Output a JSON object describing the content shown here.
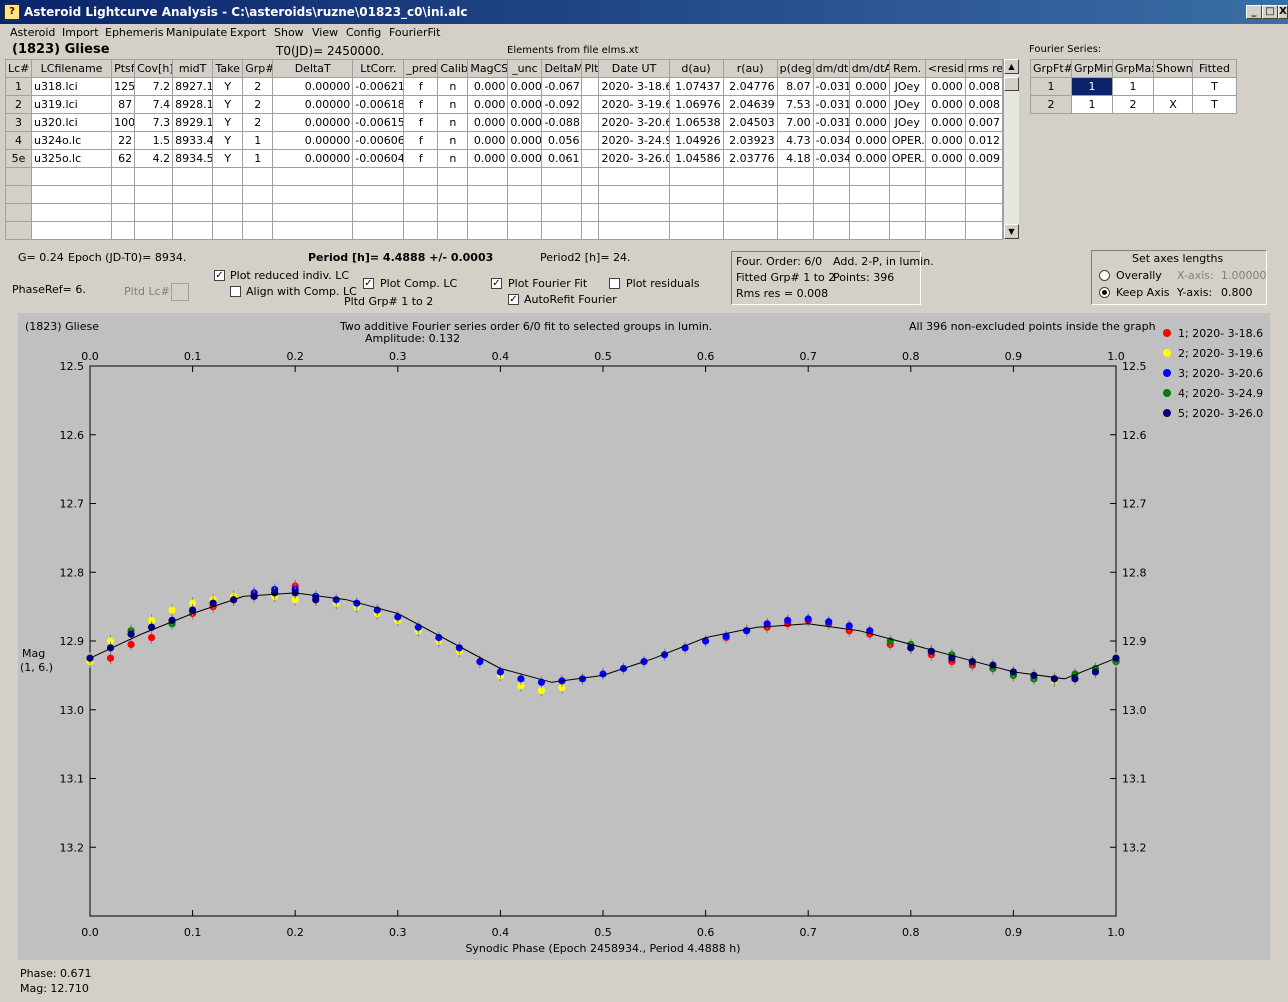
{
  "window": {
    "title": "Asteroid Lightcurve Analysis - C:\\asteroids\\ruzne\\01823_c0\\ini.alc",
    "min": "_",
    "max": "□",
    "close": "X"
  },
  "menu": [
    "Asteroid",
    "Import",
    "Ephemeris",
    "Manipulate",
    "Export",
    "Show",
    "View",
    "Config",
    "FourierFit"
  ],
  "header": {
    "asteroid": "(1823) Gliese",
    "t0": "T0(JD)= 2450000.",
    "elements": "Elements from file elms.xt",
    "fourier_label": "Fourier Series:"
  },
  "table": {
    "columns": [
      "Lc#",
      "LCfilename",
      "Ptsf",
      "Cov[h]",
      "midT",
      "Take",
      "Grp#",
      "DeltaT",
      "LtCorr.",
      "_pred.",
      "Calib.",
      "MagCS",
      "_unc",
      "DeltaM",
      "Plt",
      "Date UT",
      "d(au)",
      "r(au)",
      "p(deg)",
      "dm/dt",
      "dm/dtA",
      "Rem.",
      "<resid>",
      "rms res"
    ],
    "rows": [
      [
        "1",
        "u318.lci",
        "125",
        "7.2",
        "8927.1",
        "Y",
        "2",
        "0.00000",
        "-0.00621",
        "f",
        "n",
        "0.000",
        "0.000",
        "-0.067",
        "",
        "2020- 3-18.6",
        "1.07437",
        "2.04776",
        "8.07",
        "-0.031",
        "0.000",
        "JOey",
        "0.000",
        "0.008"
      ],
      [
        "2",
        "u319.lci",
        "87",
        "7.4",
        "8928.1",
        "Y",
        "2",
        "0.00000",
        "-0.00618",
        "f",
        "n",
        "0.000",
        "0.000",
        "-0.092",
        "",
        "2020- 3-19.6",
        "1.06976",
        "2.04639",
        "7.53",
        "-0.031",
        "0.000",
        "JOey",
        "0.000",
        "0.008"
      ],
      [
        "3",
        "u320.lci",
        "100",
        "7.3",
        "8929.1",
        "Y",
        "2",
        "0.00000",
        "-0.00615",
        "f",
        "n",
        "0.000",
        "0.000",
        "-0.088",
        "",
        "2020- 3-20.6",
        "1.06538",
        "2.04503",
        "7.00",
        "-0.031",
        "0.000",
        "JOey",
        "0.000",
        "0.007"
      ],
      [
        "4",
        "u324o.lc",
        "22",
        "1.5",
        "8933.4",
        "Y",
        "1",
        "0.00000",
        "-0.00606",
        "f",
        "n",
        "0.000",
        "0.000",
        "0.056",
        "",
        "2020- 3-24.9",
        "1.04926",
        "2.03923",
        "4.73",
        "-0.034",
        "0.000",
        "OPER.",
        "0.000",
        "0.012"
      ],
      [
        "5e",
        "u325o.lc",
        "62",
        "4.2",
        "8934.5",
        "Y",
        "1",
        "0.00000",
        "-0.00604",
        "f",
        "n",
        "0.000",
        "0.000",
        "0.061",
        "",
        "2020- 3-26.0",
        "1.04586",
        "2.03776",
        "4.18",
        "-0.034",
        "0.000",
        "OPER.",
        "0.000",
        "0.009"
      ]
    ]
  },
  "fourier": {
    "columns": [
      "GrpFt#",
      "GrpMin",
      "GrpMax",
      "Shown",
      "Fitted"
    ],
    "rows": [
      [
        "1",
        "1",
        "1",
        "",
        "T"
      ],
      [
        "2",
        "1",
        "2",
        "X",
        "T"
      ]
    ]
  },
  "controls": {
    "g": "G= 0.24",
    "epoch": "Epoch (JD-T0)= 8934.",
    "period": "Period [h]= 4.4888 +/- 0.0003",
    "period2": "Period2 [h]= 24.",
    "phaseref": "PhaseRef= 6.",
    "pltd_lc": "Pltd Lc#:",
    "plot_reduced": "Plot reduced indiv. LC",
    "align": "Align with Comp. LC",
    "plot_comp": "Plot Comp. LC",
    "pltd_grp": "Pltd Grp#  1   to   2",
    "plot_fourier": "Plot Fourier Fit",
    "autorefit": "AutoRefit Fourier",
    "plot_resid": "Plot residuals",
    "four_order": "Four. Order:  6/0",
    "add": "Add. 2-P, in lumin.",
    "fitted_grp": "Fitted Grp# 1 to 2",
    "points": "Points: 396",
    "rms": "Rms res     = 0.008",
    "axes_title": "Set axes lengths",
    "overally": "Overally",
    "keep_axis": "Keep Axis",
    "xaxis_label": "X-axis:",
    "xaxis_val": "1.00000",
    "yaxis_label": "Y-axis:",
    "yaxis_val": "0.800"
  },
  "graph": {
    "name": "(1823) Gliese",
    "subtitle": "Two additive Fourier series order 6/0 fit to selected groups in lumin.",
    "amplitude": "Amplitude: 0.132",
    "note": "All 396 non-excluded points inside the graph",
    "ylabel1": "Mag",
    "ylabel2": "(1, 6.)"
  },
  "status": {
    "phase": "Phase:  0.671",
    "mag": "Mag:   12.710"
  },
  "chart_data": {
    "type": "scatter",
    "title": "Two additive Fourier series order 6/0 fit to selected groups in lumin.",
    "xlabel": "Synodic Phase (Epoch 2458934., Period 4.4888 h)",
    "ylabel": "Mag (1, 6.)",
    "xlim": [
      0.0,
      1.0
    ],
    "ylim": [
      12.5,
      13.3
    ],
    "y_inverted": true,
    "xticks": [
      "0.0",
      "0.1",
      "0.2",
      "0.3",
      "0.4",
      "0.5",
      "0.6",
      "0.7",
      "0.8",
      "0.9",
      "1.0"
    ],
    "yticks": [
      "12.5",
      "12.6",
      "12.7",
      "12.8",
      "12.9",
      "13.0",
      "13.1",
      "13.2"
    ],
    "fit_curve": {
      "x": [
        0.0,
        0.05,
        0.1,
        0.15,
        0.2,
        0.25,
        0.3,
        0.35,
        0.4,
        0.45,
        0.5,
        0.55,
        0.6,
        0.65,
        0.7,
        0.75,
        0.8,
        0.85,
        0.9,
        0.95,
        1.0
      ],
      "y": [
        12.925,
        12.89,
        12.86,
        12.835,
        12.83,
        12.84,
        12.86,
        12.9,
        12.94,
        12.96,
        12.95,
        12.925,
        12.895,
        12.88,
        12.875,
        12.885,
        12.905,
        12.925,
        12.945,
        12.955,
        12.925
      ]
    },
    "series": [
      {
        "name": "1; 2020- 3-18.6",
        "color": "#ff0000",
        "x": [
          0.76,
          0.78,
          0.8,
          0.82,
          0.84,
          0.86,
          0.88,
          0.9,
          0.92,
          0.94,
          0.96,
          0.98,
          1.0,
          0.02,
          0.04,
          0.06,
          0.08,
          0.1,
          0.12,
          0.14,
          0.16,
          0.18,
          0.2,
          0.22,
          0.62,
          0.64,
          0.66,
          0.68,
          0.7,
          0.72,
          0.74
        ],
        "y": [
          12.89,
          12.905,
          12.91,
          12.92,
          12.93,
          12.935,
          12.94,
          12.95,
          12.955,
          12.958,
          12.95,
          12.94,
          12.93,
          12.925,
          12.905,
          12.895,
          12.87,
          12.86,
          12.85,
          12.84,
          12.835,
          12.83,
          12.82,
          12.84,
          12.895,
          12.885,
          12.88,
          12.875,
          12.87,
          12.875,
          12.885
        ]
      },
      {
        "name": "2; 2020- 3-19.6",
        "color": "#ffff00",
        "x": [
          0.0,
          0.02,
          0.04,
          0.06,
          0.08,
          0.1,
          0.12,
          0.14,
          0.16,
          0.18,
          0.2,
          0.22,
          0.24,
          0.26,
          0.28,
          0.3,
          0.32,
          0.34,
          0.36,
          0.38,
          0.4,
          0.42,
          0.44,
          0.46,
          0.88,
          0.9,
          0.92,
          0.94,
          0.96,
          0.98
        ],
        "y": [
          12.93,
          12.9,
          12.885,
          12.87,
          12.855,
          12.845,
          12.84,
          12.835,
          12.83,
          12.835,
          12.84,
          12.84,
          12.845,
          12.85,
          12.86,
          12.87,
          12.885,
          12.9,
          12.915,
          12.93,
          12.95,
          12.965,
          12.972,
          12.968,
          12.94,
          12.945,
          12.95,
          12.958,
          12.95,
          12.94
        ]
      },
      {
        "name": "3; 2020- 3-20.6",
        "color": "#0000ff",
        "x": [
          0.16,
          0.18,
          0.2,
          0.22,
          0.24,
          0.26,
          0.28,
          0.3,
          0.32,
          0.34,
          0.36,
          0.38,
          0.4,
          0.42,
          0.44,
          0.46,
          0.48,
          0.5,
          0.52,
          0.54,
          0.56,
          0.58,
          0.6,
          0.62,
          0.64,
          0.66,
          0.68,
          0.7,
          0.72,
          0.74,
          0.76
        ],
        "y": [
          12.83,
          12.825,
          12.825,
          12.835,
          12.84,
          12.845,
          12.855,
          12.865,
          12.88,
          12.895,
          12.91,
          12.93,
          12.945,
          12.955,
          12.96,
          12.958,
          12.955,
          12.948,
          12.94,
          12.93,
          12.92,
          12.91,
          12.9,
          12.893,
          12.885,
          12.875,
          12.87,
          12.868,
          12.872,
          12.878,
          12.885
        ]
      },
      {
        "name": "4; 2020- 3-24.9",
        "color": "#008000",
        "x": [
          0.04,
          0.06,
          0.08,
          0.78,
          0.8,
          0.82,
          0.84,
          0.86,
          0.88,
          0.9,
          0.92,
          0.94,
          0.96,
          0.98,
          1.0
        ],
        "y": [
          12.885,
          12.88,
          12.875,
          12.9,
          12.905,
          12.915,
          12.92,
          12.93,
          12.94,
          12.95,
          12.955,
          12.955,
          12.948,
          12.94,
          12.93
        ]
      },
      {
        "name": "5; 2020- 3-26.0",
        "color": "#000080",
        "x": [
          0.0,
          0.02,
          0.04,
          0.06,
          0.08,
          0.1,
          0.12,
          0.14,
          0.16,
          0.18,
          0.2,
          0.22,
          0.8,
          0.82,
          0.84,
          0.86,
          0.88,
          0.9,
          0.92,
          0.94,
          0.96,
          0.98,
          1.0
        ],
        "y": [
          12.925,
          12.91,
          12.89,
          12.88,
          12.87,
          12.855,
          12.845,
          12.84,
          12.835,
          12.83,
          12.83,
          12.84,
          12.91,
          12.915,
          12.925,
          12.93,
          12.935,
          12.945,
          12.95,
          12.955,
          12.955,
          12.945,
          12.925
        ]
      }
    ]
  }
}
